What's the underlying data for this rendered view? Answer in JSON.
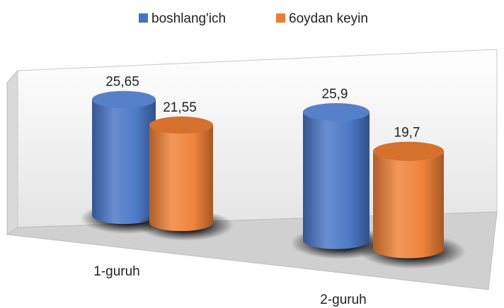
{
  "chart_data": {
    "type": "bar",
    "categories": [
      "1-guruh",
      "2-guruh"
    ],
    "series": [
      {
        "name": "boshlang'ich",
        "color": "#4472c4",
        "values": [
          25.65,
          25.9
        ],
        "value_labels": [
          "25,65",
          "25,9"
        ]
      },
      {
        "name": "6oydan keyin",
        "color": "#ed7d31",
        "values": [
          21.55,
          19.7
        ],
        "value_labels": [
          "21,55",
          "19,7"
        ]
      }
    ],
    "legend": "top"
  }
}
